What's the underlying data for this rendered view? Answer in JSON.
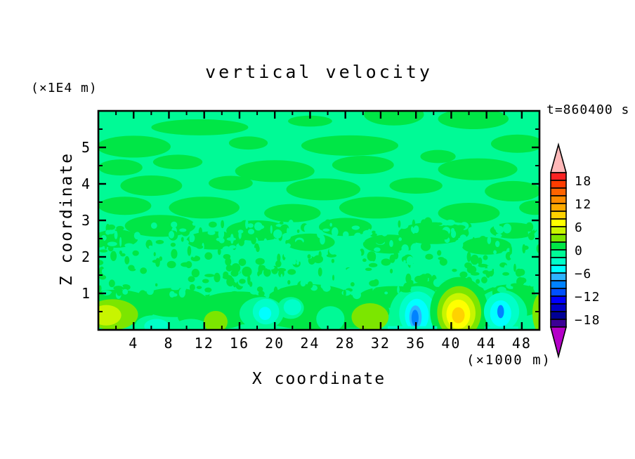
{
  "chart_data": {
    "type": "filled_contour",
    "title": "vertical velocity",
    "time_label": "t=860400 s",
    "x_axis": {
      "label": "X coordinate",
      "unit": "(×1000 m)",
      "min": 0,
      "max": 50,
      "major_ticks": [
        4,
        8,
        12,
        16,
        20,
        24,
        28,
        32,
        36,
        40,
        44,
        48
      ],
      "minor_ticks": [
        2,
        6,
        10,
        14,
        18,
        22,
        26,
        30,
        34,
        38,
        42,
        46,
        50
      ]
    },
    "z_axis": {
      "label": "Z coordinate",
      "unit": "(×1E4 m)",
      "min": 0,
      "max": 6,
      "major_ticks": [
        1,
        2,
        3,
        4,
        5
      ],
      "minor_ticks": [
        0.5,
        1.5,
        2.5,
        3.5,
        4.5,
        5.5
      ]
    },
    "colorbar": {
      "level_max": 20,
      "level_min": -20,
      "level_step": 2,
      "labels": [
        "18",
        "12",
        "6",
        "0",
        "−6",
        "−12",
        "−18"
      ],
      "label_values": [
        18,
        12,
        6,
        0,
        -6,
        -12,
        -18
      ],
      "colors_top_to_bottom": [
        "#FA2323",
        "#FF3C00",
        "#FF6400",
        "#FF8C00",
        "#FFAA00",
        "#FFD200",
        "#FFFF00",
        "#C8F500",
        "#7CE600",
        "#00E646",
        "#00FA96",
        "#00FFC8",
        "#00FFFF",
        "#2DB4FF",
        "#0082FF",
        "#0050FF",
        "#0000FF",
        "#0000C8",
        "#000096",
        "#3C0096"
      ],
      "over_arrow_color": "#FFB9B9",
      "under_arrow_color": "#B400C8"
    },
    "palette": {
      "mint": "#00FA96",
      "green": "#00E646",
      "chart": "#7CE600",
      "ygreen": "#C8F500",
      "yellow": "#FFFF00",
      "gold": "#FFD200",
      "turq": "#00FFC8",
      "cyan": "#00FFFF",
      "sky": "#2DB4FF",
      "dodger": "#0082FF"
    },
    "field": {
      "background": "mint",
      "upper_patches": [
        [
          11.5,
          5.55,
          5.5,
          0.22
        ],
        [
          24,
          5.72,
          2.5,
          0.15
        ],
        [
          33.5,
          5.9,
          3.4,
          0.3
        ],
        [
          42.5,
          5.78,
          4.0,
          0.28
        ],
        [
          4,
          5.02,
          4.2,
          0.3
        ],
        [
          17,
          5.12,
          2.2,
          0.18
        ],
        [
          28.5,
          5.05,
          5.5,
          0.28
        ],
        [
          47.5,
          5.1,
          3.0,
          0.25
        ],
        [
          2.5,
          4.45,
          2.5,
          0.22
        ],
        [
          9,
          4.6,
          2.8,
          0.2
        ],
        [
          20,
          4.35,
          4.5,
          0.3
        ],
        [
          30,
          4.52,
          3.5,
          0.25
        ],
        [
          38.5,
          4.75,
          2.0,
          0.18
        ],
        [
          43,
          4.4,
          4.5,
          0.3
        ],
        [
          6,
          3.95,
          3.5,
          0.28
        ],
        [
          15,
          4.02,
          2.5,
          0.2
        ],
        [
          25.5,
          3.85,
          4.2,
          0.3
        ],
        [
          36,
          3.95,
          3.0,
          0.22
        ],
        [
          47,
          3.8,
          3.2,
          0.28
        ],
        [
          3,
          3.4,
          3.0,
          0.25
        ],
        [
          12,
          3.35,
          4.0,
          0.3
        ],
        [
          22,
          3.2,
          3.2,
          0.25
        ],
        [
          31.5,
          3.35,
          4.2,
          0.3
        ],
        [
          42,
          3.2,
          3.5,
          0.28
        ],
        [
          49.5,
          3.35,
          1.8,
          0.2
        ],
        [
          7,
          2.85,
          4.0,
          0.3
        ],
        [
          18,
          2.72,
          3.5,
          0.28
        ],
        [
          28,
          2.82,
          3.0,
          0.25
        ],
        [
          38,
          2.65,
          4.0,
          0.3
        ],
        [
          47,
          2.72,
          2.6,
          0.22
        ],
        [
          2,
          2.5,
          2.5,
          0.25
        ],
        [
          13,
          2.45,
          3.0,
          0.25
        ],
        [
          24,
          2.4,
          2.8,
          0.24
        ],
        [
          33,
          2.35,
          3.0,
          0.26
        ],
        [
          44,
          2.3,
          2.8,
          0.24
        ]
      ],
      "band_patches": [
        [
          2,
          0.6,
          4.5,
          0.5
        ],
        [
          8.5,
          0.75,
          4,
          0.4
        ],
        [
          16,
          0.6,
          5,
          0.45
        ],
        [
          24,
          0.8,
          5,
          0.45
        ],
        [
          29,
          0.5,
          4,
          0.45
        ],
        [
          33.5,
          0.9,
          4,
          0.3
        ],
        [
          39,
          1.0,
          5,
          0.35
        ],
        [
          41,
          0.55,
          4,
          0.6
        ],
        [
          47,
          0.8,
          4,
          0.45
        ],
        [
          25,
          0.3,
          6,
          0.3
        ],
        [
          13,
          0.35,
          4,
          0.35
        ]
      ],
      "mint_pockets": [
        [
          6.2,
          0.12,
          2.0,
          0.28
        ],
        [
          10.5,
          0.1,
          1.8,
          0.2
        ],
        [
          18.5,
          0.45,
          2.5,
          0.45
        ],
        [
          26.3,
          0.3,
          1.6,
          0.35
        ],
        [
          36.2,
          0.45,
          3.2,
          0.75
        ],
        [
          45.6,
          0.45,
          3.0,
          0.65
        ],
        [
          33,
          0.1,
          3,
          0.2
        ],
        [
          21.8,
          0.6,
          1.5,
          0.3
        ]
      ],
      "speckle": {
        "seed": 987654321,
        "count": 520,
        "z_min": 0.95,
        "z_max": 2.95,
        "green_fraction": 0.52
      },
      "features": [
        {
          "name": "surface-updraft-left",
          "layers": [
            [
              "chart",
              1.6,
              0.42,
              2.9,
              0.42
            ],
            [
              "ygreen",
              0.9,
              0.4,
              1.7,
              0.28
            ]
          ]
        },
        {
          "name": "surface-downdraft-x6",
          "layers": [
            [
              "turq",
              6.6,
              0.1,
              1.4,
              0.2
            ]
          ]
        },
        {
          "name": "surface-updraft-x13",
          "layers": [
            [
              "chart",
              13.3,
              0.22,
              1.35,
              0.3
            ]
          ]
        },
        {
          "name": "surface-downdraft-x19",
          "layers": [
            [
              "turq",
              19,
              0.5,
              1.5,
              0.35
            ],
            [
              "cyan",
              18.9,
              0.45,
              0.7,
              0.18
            ]
          ]
        },
        {
          "name": "surface-downdraft-x22",
          "layers": [
            [
              "turq",
              22,
              0.62,
              1.0,
              0.22
            ]
          ]
        },
        {
          "name": "surface-updraft-x31",
          "layers": [
            [
              "chart",
              30.8,
              0.35,
              2.1,
              0.38
            ]
          ]
        },
        {
          "name": "surface-downdraft-x36",
          "layers": [
            [
              "turq",
              36.2,
              0.45,
              2.1,
              0.6
            ],
            [
              "cyan",
              36.1,
              0.4,
              1.35,
              0.45
            ],
            [
              "sky",
              35.95,
              0.35,
              0.7,
              0.32
            ],
            [
              "dodger",
              35.9,
              0.33,
              0.4,
              0.22
            ]
          ]
        },
        {
          "name": "surface-updraft-plume-x41",
          "layers": [
            [
              "green",
              40.9,
              0.5,
              3.3,
              0.95
            ],
            [
              "chart",
              40.9,
              0.48,
              2.5,
              0.72
            ],
            [
              "ygreen",
              40.85,
              0.46,
              1.9,
              0.55
            ],
            [
              "yellow",
              40.8,
              0.43,
              1.35,
              0.4
            ],
            [
              "gold",
              40.8,
              0.4,
              0.72,
              0.22
            ]
          ]
        },
        {
          "name": "surface-downdraft-x46",
          "layers": [
            [
              "turq",
              45.7,
              0.5,
              2.0,
              0.52
            ],
            [
              "cyan",
              45.6,
              0.45,
              1.2,
              0.36
            ],
            [
              "dodger",
              45.6,
              0.5,
              0.38,
              0.18
            ]
          ]
        },
        {
          "name": "surface-updraft-right-edge",
          "layers": [
            [
              "chart",
              50.2,
              0.45,
              1.0,
              0.55
            ],
            [
              "ygreen",
              50.4,
              0.45,
              0.55,
              0.38
            ]
          ]
        }
      ],
      "bottom_strips": [
        [
          "turq",
          32.8,
          38.4,
          0.1
        ],
        [
          "turq",
          43.8,
          47.6,
          0.09
        ]
      ]
    }
  }
}
